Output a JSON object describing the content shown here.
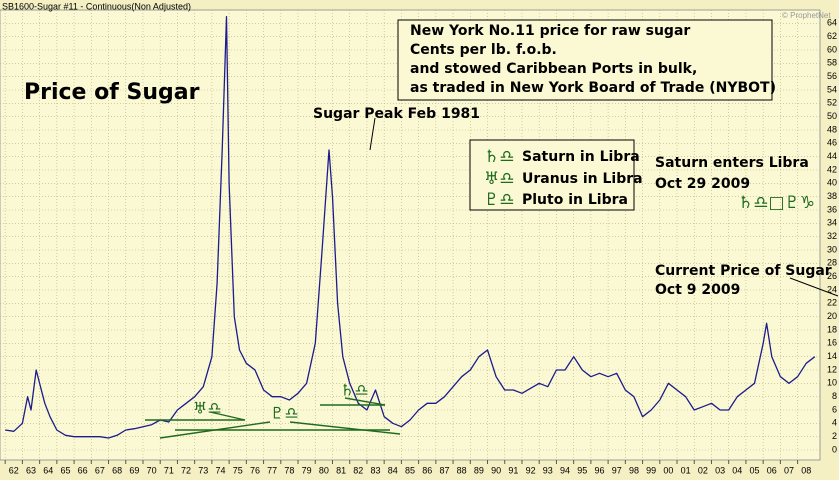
{
  "chart_data": {
    "type": "line",
    "title": "SB1600-Sugar #11 - Continuous(Non Adjusted)",
    "watermark": "© ProphetNet",
    "annotations": [
      "Price of Sugar",
      "New York No.11 price for raw sugar",
      "Cents per lb. f.o.b.",
      "and stowed Caribbean Ports in bulk,",
      "as traded in New York Board of Trade (NYBOT)",
      "Sugar Peak Feb 1981",
      "♄♎",
      "Saturn in Libra",
      "♅♎",
      "Uranus in Libra",
      "♇♎",
      "Pluto in Libra",
      "Saturn enters Libra",
      "Oct 29 2009",
      "♄♎□♇♑",
      "Current Price of Sugar",
      "Oct 9 2009",
      "♅♎",
      "♄♎",
      "♇♎"
    ],
    "series": [
      {
        "name": "Sugar #11",
        "color": "#1c1c8c",
        "x": [
          1962,
          1962.5,
          1963,
          1963.3,
          1963.5,
          1963.8,
          1964,
          1964.3,
          1964.6,
          1965,
          1965.5,
          1966,
          1966.5,
          1967,
          1967.5,
          1968,
          1968.5,
          1969,
          1969.5,
          1970,
          1970.5,
          1971,
          1971.5,
          1972,
          1972.5,
          1973,
          1973.5,
          1974,
          1974.3,
          1974.6,
          1974.85,
          1975,
          1975.3,
          1975.6,
          1976,
          1976.5,
          1977,
          1977.5,
          1978,
          1978.5,
          1979,
          1979.5,
          1980,
          1980.4,
          1980.8,
          1981,
          1981.3,
          1981.6,
          1982,
          1982.5,
          1983,
          1983.5,
          1984,
          1984.5,
          1985,
          1985.5,
          1986,
          1986.5,
          1987,
          1987.5,
          1988,
          1988.5,
          1989,
          1989.5,
          1990,
          1990.5,
          1991,
          1991.5,
          1992,
          1993,
          1993.5,
          1994,
          1994.5,
          1995,
          1995.5,
          1996,
          1996.5,
          1997,
          1997.5,
          1998,
          1998.5,
          1999,
          1999.5,
          2000,
          2000.5,
          2001,
          2001.5,
          2002,
          2002.5,
          2003,
          2003.5,
          2004,
          2004.5,
          2005,
          2005.5,
          2006,
          2006.2,
          2006.5,
          2007,
          2007.5,
          2008,
          2008.5,
          2009
        ],
        "values": [
          3,
          2.8,
          4,
          8,
          6,
          12,
          10,
          7,
          5,
          3,
          2.2,
          2,
          2,
          2,
          2,
          1.8,
          2.2,
          3,
          3.2,
          3.5,
          3.8,
          4.5,
          4.2,
          6,
          7,
          8,
          9.5,
          14,
          25,
          45,
          65,
          40,
          20,
          15,
          13,
          12,
          9,
          8,
          8,
          7.5,
          8.5,
          10,
          16,
          30,
          45,
          38,
          22,
          14,
          10,
          7,
          6,
          9,
          5,
          4,
          3.5,
          4.5,
          6,
          7,
          7,
          8,
          9.5,
          11,
          12,
          14,
          15,
          11,
          9,
          9,
          8.5,
          10,
          9.5,
          12,
          12,
          14,
          12,
          11,
          11.5,
          11,
          11.5,
          9,
          8,
          5,
          6,
          7.5,
          10,
          9,
          8,
          6,
          6.5,
          7,
          6,
          6,
          8,
          9,
          10,
          16,
          19,
          14,
          11,
          10,
          11,
          13,
          14
        ]
      }
    ],
    "xlim": [
      1961.7,
      2009.3
    ],
    "xticks": [
      {
        "value": 1962,
        "label": "62"
      },
      {
        "value": 1963,
        "label": "63"
      },
      {
        "value": 1964,
        "label": "64"
      },
      {
        "value": 1965,
        "label": "65"
      },
      {
        "value": 1966,
        "label": "66"
      },
      {
        "value": 1967,
        "label": "67"
      },
      {
        "value": 1968,
        "label": "68"
      },
      {
        "value": 1969,
        "label": "69"
      },
      {
        "value": 1970,
        "label": "70"
      },
      {
        "value": 1971,
        "label": "71"
      },
      {
        "value": 1972,
        "label": "72"
      },
      {
        "value": 1973,
        "label": "73"
      },
      {
        "value": 1974,
        "label": "74"
      },
      {
        "value": 1975,
        "label": "75"
      },
      {
        "value": 1976,
        "label": "76"
      },
      {
        "value": 1977,
        "label": "77"
      },
      {
        "value": 1978,
        "label": "78"
      },
      {
        "value": 1979,
        "label": "79"
      },
      {
        "value": 1980,
        "label": "80"
      },
      {
        "value": 1981,
        "label": "81"
      },
      {
        "value": 1982,
        "label": "82"
      },
      {
        "value": 1983,
        "label": "83"
      },
      {
        "value": 1984,
        "label": "84"
      },
      {
        "value": 1985,
        "label": "85"
      },
      {
        "value": 1986,
        "label": "86"
      },
      {
        "value": 1987,
        "label": "87"
      },
      {
        "value": 1988,
        "label": "88"
      },
      {
        "value": 1989,
        "label": "89"
      },
      {
        "value": 1990,
        "label": "90"
      },
      {
        "value": 1991,
        "label": "91"
      },
      {
        "value": 1992,
        "label": "92"
      },
      {
        "value": 1993,
        "label": "93"
      },
      {
        "value": 1994,
        "label": "94"
      },
      {
        "value": 1995,
        "label": "95"
      },
      {
        "value": 1996,
        "label": "96"
      },
      {
        "value": 1997,
        "label": "97"
      },
      {
        "value": 1998,
        "label": "98"
      },
      {
        "value": 1999,
        "label": "99"
      },
      {
        "value": 2000,
        "label": "00"
      },
      {
        "value": 2001,
        "label": "01"
      },
      {
        "value": 2002,
        "label": "02"
      },
      {
        "value": 2003,
        "label": "03"
      },
      {
        "value": 2004,
        "label": "04"
      },
      {
        "value": 2005,
        "label": "05"
      },
      {
        "value": 2006,
        "label": "06"
      },
      {
        "value": 2007,
        "label": "07"
      },
      {
        "value": 2008,
        "label": "08"
      }
    ],
    "ylim": [
      -1.5,
      66
    ],
    "yticks": [
      0,
      2,
      4,
      6,
      8,
      10,
      12,
      14,
      16,
      18,
      20,
      22,
      24,
      26,
      28,
      30,
      32,
      34,
      36,
      38,
      40,
      42,
      44,
      46,
      48,
      50,
      52,
      54,
      56,
      58,
      60,
      62,
      64
    ],
    "grid": true
  }
}
